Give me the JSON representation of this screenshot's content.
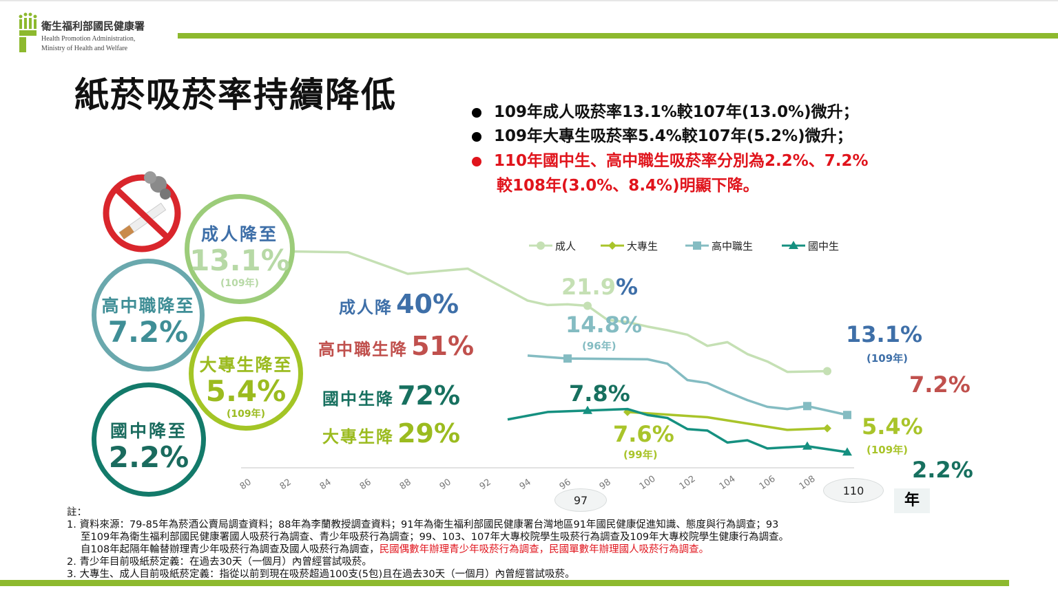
{
  "header": {
    "org_zh": "衛生福利部國民健康署",
    "org_en_1": "Health Promotion Administration,",
    "org_en_2": "Ministry of Health and Welfare"
  },
  "title": "紙菸吸菸率持續降低",
  "bullets": [
    {
      "text": "109年成人吸菸率13.1%較107年(13.0%)微升；",
      "color": "#000000"
    },
    {
      "text": "109年大專生吸菸率5.4%較107年(5.2%)微升；",
      "color": "#000000"
    },
    {
      "text": "110年國中生、高中職生吸菸率分別為2.2%、7.2%",
      "color": "#e0141c"
    },
    {
      "text": "較108年(3.0%、8.4%)明顯下降。",
      "color": "#e0141c"
    }
  ],
  "circles": {
    "adult": {
      "label": "成人降至",
      "value": "13.1%",
      "year": "(109年)"
    },
    "senior": {
      "label": "高中職降至",
      "value": "7.2%"
    },
    "college": {
      "label": "大專生降至",
      "value": "5.4%",
      "year": "(109年)"
    },
    "junior": {
      "label": "國中降至",
      "value": "2.2%"
    }
  },
  "declines": [
    {
      "label": "成人降",
      "value": "40%",
      "color": "#3e6fa8"
    },
    {
      "label": "高中職生降",
      "value": "51%",
      "color": "#c0504d"
    },
    {
      "label": "國中生降",
      "value": "72%",
      "color": "#17705f"
    },
    {
      "label": "大專生降",
      "value": "29%",
      "color": "#9bbb1f"
    }
  ],
  "annotations": {
    "adult_peak_num": "21.9",
    "adult_peak_pct": "%",
    "senior_peak": "14.8%",
    "senior_peak_year": "(96年)",
    "junior_peak": "7.8%",
    "college_peak": "7.6%",
    "college_peak_year": "(99年)",
    "adult_end": "13.1%",
    "adult_end_year": "(109年)",
    "senior_end": "7.2%",
    "college_end": "5.4%",
    "college_end_year": "(109年)",
    "junior_end": "2.2%",
    "oval_97": "97",
    "oval_110": "110",
    "year_unit": "年"
  },
  "chart_data": {
    "type": "line",
    "x_ticks": [
      "80",
      "82",
      "84",
      "86",
      "88",
      "90",
      "92",
      "94",
      "96",
      "98",
      "100",
      "102",
      "104",
      "106",
      "108"
    ],
    "xlim": [
      80,
      110
    ],
    "ylim": [
      0,
      30
    ],
    "grid": false,
    "legend": "top",
    "series": [
      {
        "name": "成人",
        "color": "#c5e0b4",
        "marker": "circle",
        "points": [
          [
            80,
            29.3
          ],
          [
            85,
            29.1
          ],
          [
            88,
            26.2
          ],
          [
            91,
            26.9
          ],
          [
            94,
            22.6
          ],
          [
            95,
            22.0
          ],
          [
            96,
            22.1
          ],
          [
            97,
            21.9
          ],
          [
            98,
            20.0
          ],
          [
            99,
            19.7
          ],
          [
            100,
            19.1
          ],
          [
            101,
            18.6
          ],
          [
            102,
            18.0
          ],
          [
            103,
            16.5
          ],
          [
            104,
            17.0
          ],
          [
            105,
            15.4
          ],
          [
            106,
            14.4
          ],
          [
            107,
            13.0
          ],
          [
            109,
            13.1
          ]
        ],
        "marked": [
          97,
          109
        ]
      },
      {
        "name": "大專生",
        "color": "#a9c42a",
        "marker": "diamond",
        "points": [
          [
            99,
            7.6
          ],
          [
            103,
            6.9
          ],
          [
            107,
            5.2
          ],
          [
            109,
            5.4
          ]
        ],
        "marked": [
          99,
          109
        ]
      },
      {
        "name": "高中職生",
        "color": "#84bcc2",
        "marker": "square",
        "points": [
          [
            94,
            15.2
          ],
          [
            96,
            14.8
          ],
          [
            100,
            14.7
          ],
          [
            101,
            14.1
          ],
          [
            102,
            11.9
          ],
          [
            103,
            11.5
          ],
          [
            104,
            10.3
          ],
          [
            105,
            9.2
          ],
          [
            106,
            8.3
          ],
          [
            107,
            8.0
          ],
          [
            108,
            8.4
          ],
          [
            110,
            7.2
          ]
        ],
        "marked": [
          96,
          108,
          110
        ]
      },
      {
        "name": "國中生",
        "color": "#159080",
        "marker": "triangle",
        "points": [
          [
            93,
            6.6
          ],
          [
            95,
            7.6
          ],
          [
            97,
            7.8
          ],
          [
            99,
            8.0
          ],
          [
            100,
            7.2
          ],
          [
            101,
            6.8
          ],
          [
            102,
            5.3
          ],
          [
            103,
            5.1
          ],
          [
            104,
            3.5
          ],
          [
            105,
            3.8
          ],
          [
            106,
            2.7
          ],
          [
            108,
            3.0
          ],
          [
            110,
            2.2
          ]
        ],
        "marked": [
          97,
          108,
          110
        ]
      }
    ]
  },
  "notes": {
    "heading": "註：",
    "n1a": "1. 資料來源：79-85年為菸酒公賣局調查資料；88年為李蘭教授調查資料；91年為衛生福利部國民健康署台灣地區91年國民健康促進知識、態度與行為調查；93",
    "n1b": "至109年為衛生福利部國民健康署國人吸菸行為調查、青少年吸菸行為調查；99、103、107年大專校院學生吸菸行為調查及109年大專校院學生健康行為調查。",
    "n1c": "自108年起隔年輪替辦理青少年吸菸行為調查及國人吸菸行為調查，",
    "n1c_red": "民國偶數年辦理青少年吸菸行為調查，民國單數年辦理國人吸菸行為調查。",
    "n2": "2. 青少年目前吸紙菸定義：在過去30天（一個月）內曾經嘗試吸菸。",
    "n3": "3. 大專生、成人目前吸紙菸定義：指從以前到現在吸菸超過100支(5包)且在過去30天（一個月）內曾經嘗試吸菸。"
  }
}
